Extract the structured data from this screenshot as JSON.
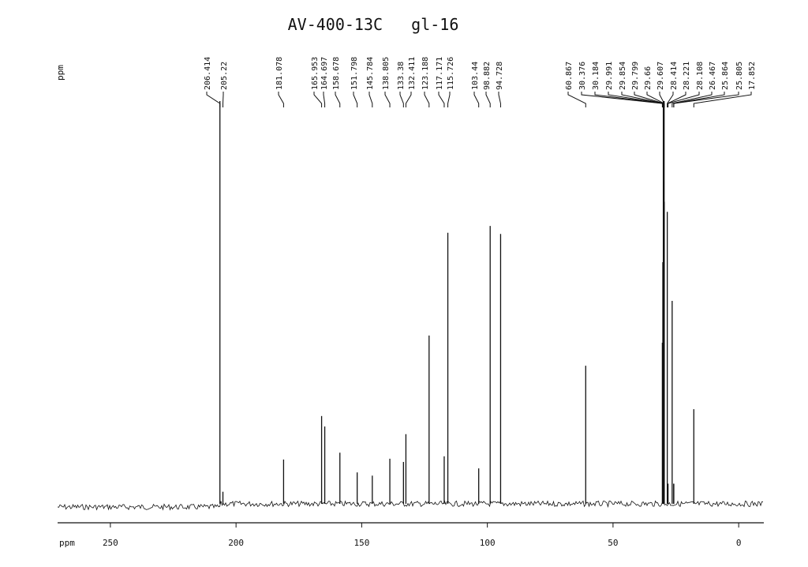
{
  "chart_data": {
    "type": "spectrum",
    "title": "AV-400-13C   gl-16",
    "x_label": "ppm",
    "y_label": "ppm",
    "x": [
      206.414,
      205.22,
      181.078,
      165.953,
      164.697,
      158.678,
      151.798,
      145.784,
      138.805,
      133.38,
      132.411,
      123.188,
      117.171,
      115.726,
      103.44,
      98.882,
      94.728,
      60.867,
      30.376,
      30.184,
      29.991,
      29.854,
      29.799,
      29.66,
      29.607,
      28.414,
      28.221,
      28.108,
      26.467,
      25.864,
      25.805,
      17.852
    ],
    "values": [
      100,
      3,
      11,
      21.8,
      19.2,
      12.7,
      7.8,
      7,
      11.2,
      10.4,
      17.3,
      41.8,
      11.8,
      67.3,
      8.8,
      69,
      67,
      34.3,
      40,
      60,
      100,
      80,
      70,
      100,
      75,
      72.5,
      5,
      5,
      50.4,
      5,
      5,
      23.5
    ],
    "color": "#111111",
    "xlim": [
      271,
      -10
    ],
    "xticks": [
      250,
      200,
      150,
      100,
      50,
      0
    ],
    "ylim": [
      0,
      100
    ]
  }
}
